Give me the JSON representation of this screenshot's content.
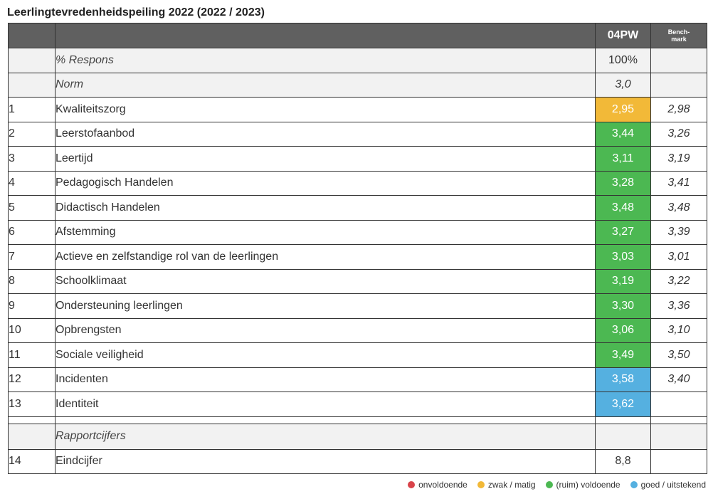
{
  "title": "Leerlingtevredenheidspeiling 2022 (2022 / 2023)",
  "header": {
    "score_col": "04PW",
    "bench_col_line1": "Bench-",
    "bench_col_line2": "mark"
  },
  "response": {
    "label": "% Respons",
    "score": "100%",
    "bench": ""
  },
  "norm": {
    "label": "Norm",
    "score": "3,0",
    "bench": ""
  },
  "rows": [
    {
      "num": "1",
      "label": "Kwaliteitszorg",
      "score": "2,95",
      "bench": "2,98",
      "level": "zwak / matig"
    },
    {
      "num": "2",
      "label": "Leerstofaanbod",
      "score": "3,44",
      "bench": "3,26",
      "level": "(ruim) voldoende"
    },
    {
      "num": "3",
      "label": "Leertijd",
      "score": "3,11",
      "bench": "3,19",
      "level": "(ruim) voldoende"
    },
    {
      "num": "4",
      "label": "Pedagogisch Handelen",
      "score": "3,28",
      "bench": "3,41",
      "level": "(ruim) voldoende"
    },
    {
      "num": "5",
      "label": "Didactisch Handelen",
      "score": "3,48",
      "bench": "3,48",
      "level": "(ruim) voldoende"
    },
    {
      "num": "6",
      "label": "Afstemming",
      "score": "3,27",
      "bench": "3,39",
      "level": "(ruim) voldoende"
    },
    {
      "num": "7",
      "label": "Actieve en zelfstandige rol van de leerlingen",
      "score": "3,03",
      "bench": "3,01",
      "level": "(ruim) voldoende"
    },
    {
      "num": "8",
      "label": "Schoolklimaat",
      "score": "3,19",
      "bench": "3,22",
      "level": "(ruim) voldoende"
    },
    {
      "num": "9",
      "label": "Ondersteuning leerlingen",
      "score": "3,30",
      "bench": "3,36",
      "level": "(ruim) voldoende"
    },
    {
      "num": "10",
      "label": "Opbrengsten",
      "score": "3,06",
      "bench": "3,10",
      "level": "(ruim) voldoende"
    },
    {
      "num": "11",
      "label": "Sociale veiligheid",
      "score": "3,49",
      "bench": "3,50",
      "level": "(ruim) voldoende"
    },
    {
      "num": "12",
      "label": "Incidenten",
      "score": "3,58",
      "bench": "3,40",
      "level": "goed / uitstekend"
    },
    {
      "num": "13",
      "label": "Identiteit",
      "score": "3,62",
      "bench": "",
      "level": "goed / uitstekend"
    }
  ],
  "section": {
    "label": "Rapportcijfers"
  },
  "final_row": {
    "num": "14",
    "label": "Eindcijfer",
    "score": "8,8",
    "bench": ""
  },
  "legend": [
    {
      "label": "onvoldoende",
      "color": "#d9434a"
    },
    {
      "label": "zwak / matig",
      "color": "#f2b938"
    },
    {
      "label": "(ruim) voldoende",
      "color": "#4cb852"
    },
    {
      "label": "goed / uitstekend",
      "color": "#55b0e0"
    }
  ]
}
